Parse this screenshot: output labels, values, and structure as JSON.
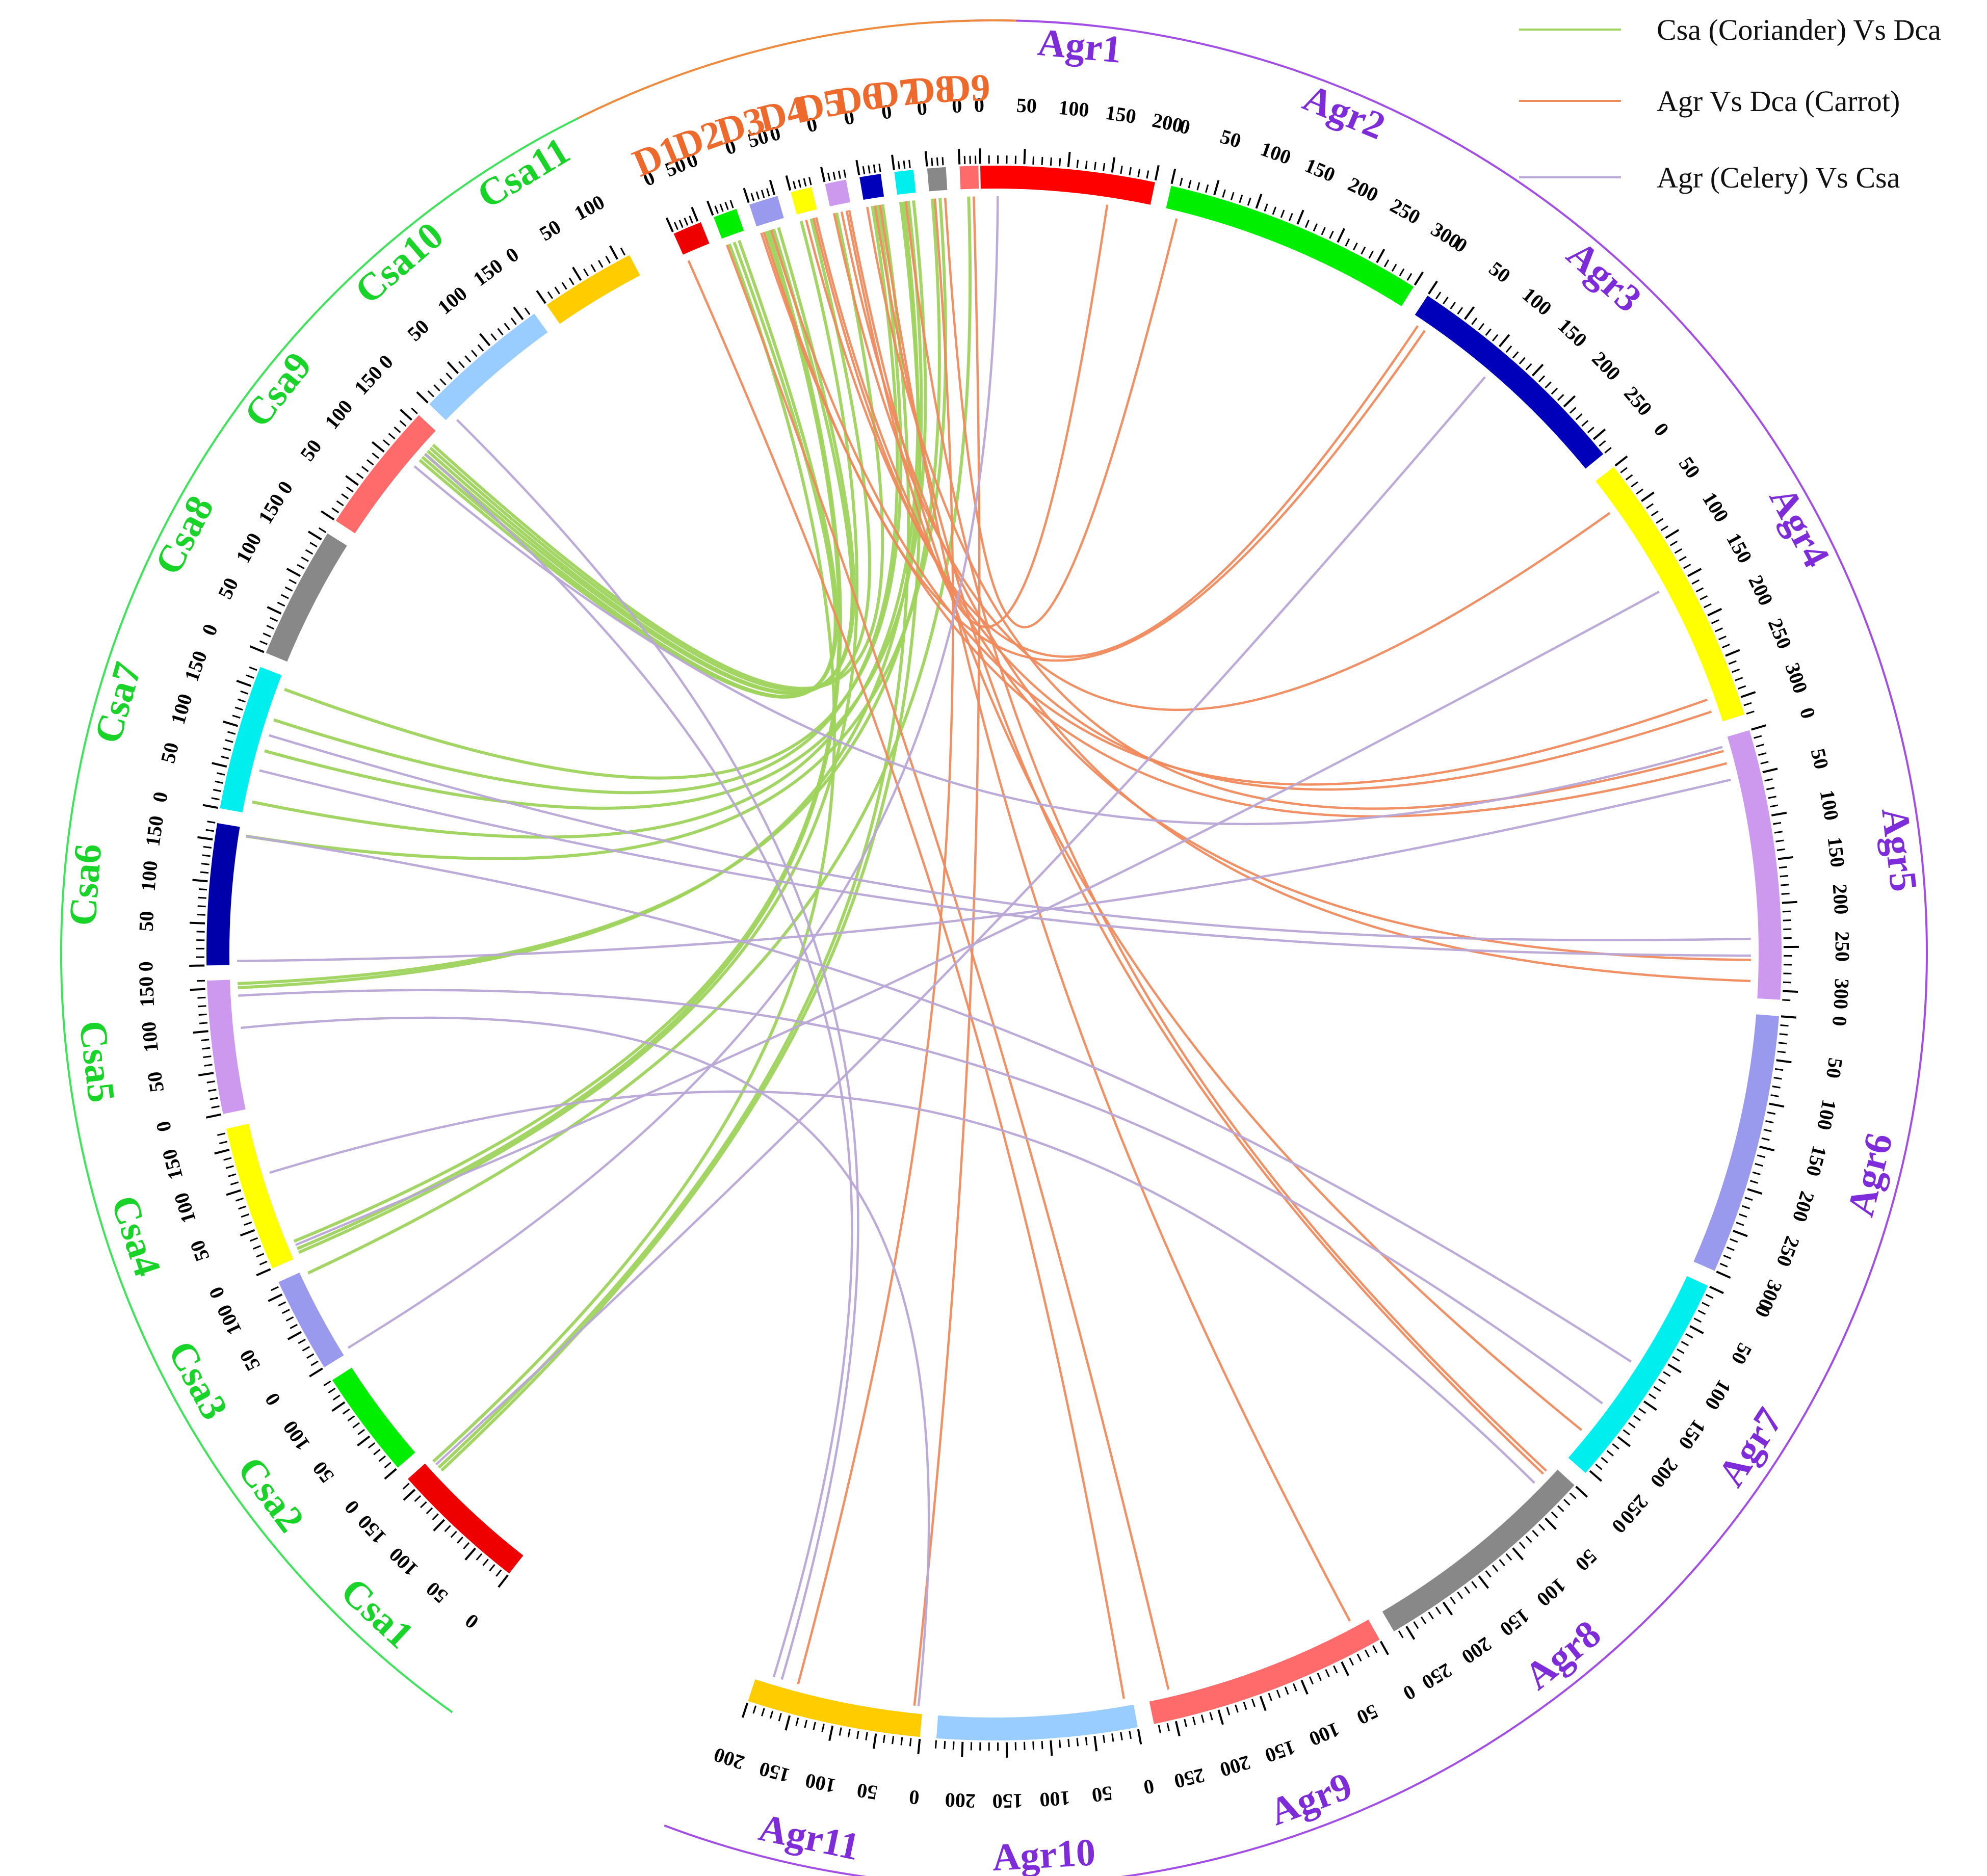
{
  "diagram": {
    "type": "circos-synteny",
    "legend": [
      {
        "label": "Csa (Coriander) Vs Dca",
        "color": "#9ed35c"
      },
      {
        "label": "Agr Vs Dca (Carrot)",
        "color": "#ef8a5c"
      },
      {
        "label": "Agr (Celery) Vs Csa",
        "color": "#b8a6d6"
      }
    ],
    "genomes": [
      {
        "id": "Agr",
        "arc_color": "#a24ee6",
        "label_color": "#7e2bd9"
      },
      {
        "id": "Csa",
        "arc_color": "#3fe35a",
        "label_color": "#18d429"
      },
      {
        "id": "Dca",
        "arc_color": "#ef8a3c",
        "label_color": "#ee6a2c"
      }
    ],
    "chromosomes": [
      {
        "name": "Agr1",
        "genome": "Agr",
        "len": 200,
        "color": "#ff0000",
        "ticks": [
          0,
          50,
          100,
          150,
          200
        ]
      },
      {
        "name": "Agr2",
        "genome": "Agr",
        "len": 300,
        "color": "#00ee00",
        "ticks": [
          0,
          50,
          100,
          150,
          200,
          250,
          300
        ]
      },
      {
        "name": "Agr3",
        "genome": "Agr",
        "len": 270,
        "color": "#0000bb",
        "ticks": [
          0,
          50,
          100,
          150,
          200,
          250
        ]
      },
      {
        "name": "Agr4",
        "genome": "Agr",
        "len": 320,
        "color": "#ffff00",
        "ticks": [
          0,
          50,
          100,
          150,
          200,
          250,
          300
        ]
      },
      {
        "name": "Agr5",
        "genome": "Agr",
        "len": 310,
        "color": "#cc99ee",
        "ticks": [
          0,
          50,
          100,
          150,
          200,
          250,
          300
        ]
      },
      {
        "name": "Agr6",
        "genome": "Agr",
        "len": 300,
        "color": "#9999ee",
        "ticks": [
          0,
          50,
          100,
          150,
          200,
          250,
          300
        ]
      },
      {
        "name": "Agr7",
        "genome": "Agr",
        "len": 255,
        "color": "#00eeee",
        "ticks": [
          0,
          50,
          100,
          150,
          200,
          250
        ]
      },
      {
        "name": "Agr8",
        "genome": "Agr",
        "len": 265,
        "color": "#888888",
        "ticks": [
          0,
          50,
          100,
          150,
          200,
          250
        ]
      },
      {
        "name": "Agr9",
        "genome": "Agr",
        "len": 275,
        "color": "#ff6b6b",
        "ticks": [
          0,
          50,
          100,
          150,
          200,
          250
        ]
      },
      {
        "name": "Agr10",
        "genome": "Agr",
        "len": 230,
        "color": "#99ccff",
        "ticks": [
          0,
          50,
          100,
          150,
          200
        ]
      },
      {
        "name": "Agr11",
        "genome": "Agr",
        "len": 200,
        "color": "#ffcc00",
        "ticks": [
          0,
          50,
          100,
          150,
          200
        ]
      },
      {
        "name": "Csa1",
        "genome": "Csa",
        "len": 165,
        "color": "#ee0000",
        "ticks": [
          0,
          50,
          100,
          150
        ]
      },
      {
        "name": "Csa2",
        "genome": "Csa",
        "len": 130,
        "color": "#00ee00",
        "ticks": [
          0,
          50,
          100
        ]
      },
      {
        "name": "Csa3",
        "genome": "Csa",
        "len": 115,
        "color": "#9999ee",
        "ticks": [
          0,
          50,
          100
        ]
      },
      {
        "name": "Csa4",
        "genome": "Csa",
        "len": 175,
        "color": "#ffff00",
        "ticks": [
          0,
          50,
          100,
          150
        ]
      },
      {
        "name": "Csa5",
        "genome": "Csa",
        "len": 160,
        "color": "#cc99ee",
        "ticks": [
          0,
          50,
          100,
          150
        ]
      },
      {
        "name": "Csa6",
        "genome": "Csa",
        "len": 170,
        "color": "#0000aa",
        "ticks": [
          0,
          50,
          100,
          150
        ]
      },
      {
        "name": "Csa7",
        "genome": "Csa",
        "len": 175,
        "color": "#00eeee",
        "ticks": [
          0,
          50,
          100,
          150
        ]
      },
      {
        "name": "Csa8",
        "genome": "Csa",
        "len": 160,
        "color": "#888888",
        "ticks": [
          0,
          50,
          100,
          150
        ]
      },
      {
        "name": "Csa9",
        "genome": "Csa",
        "len": 160,
        "color": "#ff6b6b",
        "ticks": [
          0,
          50,
          100,
          150
        ]
      },
      {
        "name": "Csa10",
        "genome": "Csa",
        "len": 165,
        "color": "#99ccff",
        "ticks": [
          0,
          50,
          100,
          150
        ]
      },
      {
        "name": "Csa11",
        "genome": "Csa",
        "len": 115,
        "color": "#ffcc00",
        "ticks": [
          0,
          50,
          100
        ]
      },
      {
        "name": "D1",
        "genome": "Dca",
        "len": 55,
        "color": "#ee0000",
        "ticks": [
          0,
          50
        ]
      },
      {
        "name": "D2",
        "genome": "Dca",
        "len": 45,
        "color": "#00ee00",
        "ticks": [
          0
        ]
      },
      {
        "name": "D3",
        "genome": "Dca",
        "len": 55,
        "color": "#9999ee",
        "ticks": [
          0,
          50
        ]
      },
      {
        "name": "D4",
        "genome": "Dca",
        "len": 40,
        "color": "#ffff00",
        "ticks": [
          0
        ]
      },
      {
        "name": "D5",
        "genome": "Dca",
        "len": 40,
        "color": "#cc99ee",
        "ticks": [
          0
        ]
      },
      {
        "name": "D6",
        "genome": "Dca",
        "len": 40,
        "color": "#0000bb",
        "ticks": [
          0
        ]
      },
      {
        "name": "D7",
        "genome": "Dca",
        "len": 36,
        "color": "#00eeee",
        "ticks": [
          0
        ]
      },
      {
        "name": "D8",
        "genome": "Dca",
        "len": 35,
        "color": "#888888",
        "ticks": [
          0
        ]
      },
      {
        "name": "D9",
        "genome": "Dca",
        "len": 35,
        "color": "#ff6b6b",
        "ticks": [
          0
        ]
      }
    ],
    "links": [
      {
        "type": "Csa-Dca",
        "a": [
          "Csa9",
          145
        ],
        "b": [
          "D5",
          10
        ]
      },
      {
        "type": "Csa-Dca",
        "a": [
          "Csa9",
          140
        ],
        "b": [
          "D4",
          25
        ]
      },
      {
        "type": "Csa-Dca",
        "a": [
          "Csa9",
          135
        ],
        "b": [
          "D3",
          30
        ]
      },
      {
        "type": "Csa-Dca",
        "a": [
          "Csa9",
          130
        ],
        "b": [
          "D3",
          40
        ]
      },
      {
        "type": "Csa-Dca",
        "a": [
          "Csa9",
          125
        ],
        "b": [
          "D2",
          20
        ]
      },
      {
        "type": "Csa-Dca",
        "a": [
          "Csa9",
          120
        ],
        "b": [
          "D2",
          30
        ]
      },
      {
        "type": "Csa-Dca",
        "a": [
          "Csa7",
          160
        ],
        "b": [
          "D6",
          25
        ]
      },
      {
        "type": "Csa-Dca",
        "a": [
          "Csa7",
          120
        ],
        "b": [
          "D6",
          15
        ]
      },
      {
        "type": "Csa-Dca",
        "a": [
          "Csa7",
          80
        ],
        "b": [
          "D7",
          30
        ]
      },
      {
        "type": "Csa-Dca",
        "a": [
          "Csa7",
          15
        ],
        "b": [
          "D7",
          10
        ]
      },
      {
        "type": "Csa-Dca",
        "a": [
          "Csa6",
          160
        ],
        "b": [
          "D8",
          20
        ]
      },
      {
        "type": "Csa-Dca",
        "a": [
          "Csa5",
          150
        ],
        "b": [
          "D7",
          20
        ]
      },
      {
        "type": "Csa-Dca",
        "a": [
          "Csa5",
          155
        ],
        "b": [
          "D8",
          5
        ]
      },
      {
        "type": "Csa-Dca",
        "a": [
          "Csa4",
          20
        ],
        "b": [
          "D3",
          15
        ]
      },
      {
        "type": "Csa-Dca",
        "a": [
          "Csa4",
          10
        ],
        "b": [
          "D3",
          20
        ]
      },
      {
        "type": "Csa-Dca",
        "a": [
          "Csa4",
          5
        ],
        "b": [
          "D4",
          5
        ]
      },
      {
        "type": "Csa-Dca",
        "a": [
          "Csa3",
          110
        ],
        "b": [
          "D9",
          15
        ]
      },
      {
        "type": "Csa-Dca",
        "a": [
          "Csa1",
          160
        ],
        "b": [
          "D2",
          10
        ]
      },
      {
        "type": "Csa-Dca",
        "a": [
          "Csa1",
          150
        ],
        "b": [
          "D6",
          35
        ]
      },
      {
        "type": "Csa-Dca",
        "a": [
          "Csa1",
          145
        ],
        "b": [
          "D7",
          5
        ]
      },
      {
        "type": "Agr-Dca",
        "a": [
          "Agr1",
          150
        ],
        "b": [
          "D5",
          30
        ]
      },
      {
        "type": "Agr-Dca",
        "a": [
          "Agr2",
          15
        ],
        "b": [
          "D8",
          30
        ]
      },
      {
        "type": "Agr-Dca",
        "a": [
          "Agr3",
          10
        ],
        "b": [
          "D4",
          30
        ]
      },
      {
        "type": "Agr-Dca",
        "a": [
          "Agr3",
          20
        ],
        "b": [
          "D3",
          10
        ]
      },
      {
        "type": "Agr-Dca",
        "a": [
          "Agr4",
          40
        ],
        "b": [
          "D5",
          5
        ]
      },
      {
        "type": "Agr-Dca",
        "a": [
          "Agr4",
          290
        ],
        "b": [
          "D3",
          25
        ]
      },
      {
        "type": "Agr-Dca",
        "a": [
          "Agr4",
          305
        ],
        "b": [
          "D4",
          15
        ]
      },
      {
        "type": "Agr-Dca",
        "a": [
          "Agr5",
          15
        ],
        "b": [
          "D6",
          5
        ]
      },
      {
        "type": "Agr-Dca",
        "a": [
          "Agr5",
          30
        ],
        "b": [
          "D3",
          5
        ]
      },
      {
        "type": "Agr-Dca",
        "a": [
          "Agr5",
          265
        ],
        "b": [
          "D4",
          35
        ]
      },
      {
        "type": "Agr-Dca",
        "a": [
          "Agr5",
          290
        ],
        "b": [
          "D5",
          20
        ]
      },
      {
        "type": "Agr-Dca",
        "a": [
          "Agr7",
          220
        ],
        "b": [
          "D5",
          35
        ]
      },
      {
        "type": "Agr-Dca",
        "a": [
          "Agr8",
          15
        ],
        "b": [
          "D6",
          20
        ]
      },
      {
        "type": "Agr-Dca",
        "a": [
          "Agr8",
          10
        ],
        "b": [
          "D7",
          15
        ]
      },
      {
        "type": "Agr-Dca",
        "a": [
          "Agr9",
          20
        ],
        "b": [
          "D6",
          30
        ]
      },
      {
        "type": "Agr-Dca",
        "a": [
          "Agr9",
          250
        ],
        "b": [
          "D2",
          5
        ]
      },
      {
        "type": "Agr-Dca",
        "a": [
          "Agr10",
          10
        ],
        "b": [
          "D1",
          5
        ]
      },
      {
        "type": "Agr-Dca",
        "a": [
          "Agr11",
          10
        ],
        "b": [
          "D9",
          25
        ]
      },
      {
        "type": "Agr-Dca",
        "a": [
          "Agr11",
          150
        ],
        "b": [
          "D8",
          10
        ]
      },
      {
        "type": "Agr-Csa",
        "a": [
          "Agr1",
          20
        ],
        "b": [
          "Csa3",
          5
        ]
      },
      {
        "type": "Agr-Csa",
        "a": [
          "Agr3",
          110
        ],
        "b": [
          "Csa1",
          155
        ]
      },
      {
        "type": "Agr-Csa",
        "a": [
          "Agr4",
          150
        ],
        "b": [
          "Csa4",
          15
        ]
      },
      {
        "type": "Agr-Csa",
        "a": [
          "Agr5",
          10
        ],
        "b": [
          "Csa9",
          110
        ]
      },
      {
        "type": "Agr-Csa",
        "a": [
          "Agr5",
          50
        ],
        "b": [
          "Csa6",
          5
        ]
      },
      {
        "type": "Agr-Csa",
        "a": [
          "Agr5",
          240
        ],
        "b": [
          "Csa7",
          100
        ]
      },
      {
        "type": "Agr-Csa",
        "a": [
          "Agr5",
          260
        ],
        "b": [
          "Csa7",
          55
        ]
      },
      {
        "type": "Agr-Csa",
        "a": [
          "Agr7",
          120
        ],
        "b": [
          "Csa6",
          160
        ]
      },
      {
        "type": "Agr-Csa",
        "a": [
          "Agr8",
          30
        ],
        "b": [
          "Csa4",
          110
        ]
      },
      {
        "type": "Agr-Csa",
        "a": [
          "Agr7",
          180
        ],
        "b": [
          "Csa5",
          140
        ]
      },
      {
        "type": "Agr-Csa",
        "a": [
          "Agr11",
          5
        ],
        "b": [
          "Csa5",
          100
        ]
      },
      {
        "type": "Agr-Csa",
        "a": [
          "Agr11",
          170
        ],
        "b": [
          "Csa10",
          10
        ]
      },
      {
        "type": "Agr-Csa",
        "a": [
          "Agr11",
          180
        ],
        "b": [
          "Csa9",
          130
        ]
      }
    ]
  }
}
